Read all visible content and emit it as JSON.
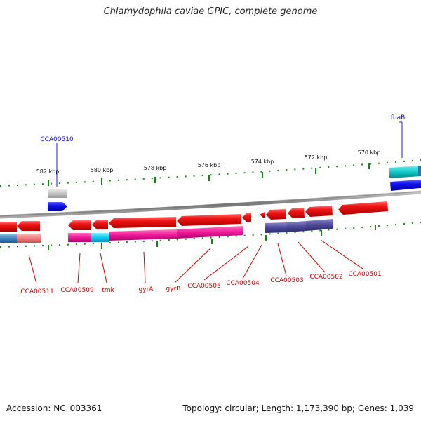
{
  "title": "Chlamydophila caviae GPIC, complete genome",
  "footer": {
    "accession": "Accession: NC_003361",
    "topology": "Topology: circular; Length: 1,173,390 bp; Genes: 1,039"
  },
  "scale_labels": [
    "582 kbp",
    "580 kbp",
    "578 kbp",
    "576 kbp",
    "574 kbp",
    "572 kbp",
    "570 kbp"
  ],
  "gene_labels_top": [
    "CCA00510",
    "fbaB"
  ],
  "gene_labels_bottom": [
    "CCA00511",
    "CCA00509",
    "tmk",
    "gyrA",
    "gyrB",
    "CCA00505",
    "CCA00504",
    "CCA00503",
    "CCA00502",
    "CCA00501"
  ],
  "colors": {
    "forward_gene": "#1010e0",
    "reverse_gene": "#e01010",
    "label_blue": "#1010c0",
    "label_red": "#cc0000",
    "backbone": "#888888",
    "ticks": "#118811"
  }
}
